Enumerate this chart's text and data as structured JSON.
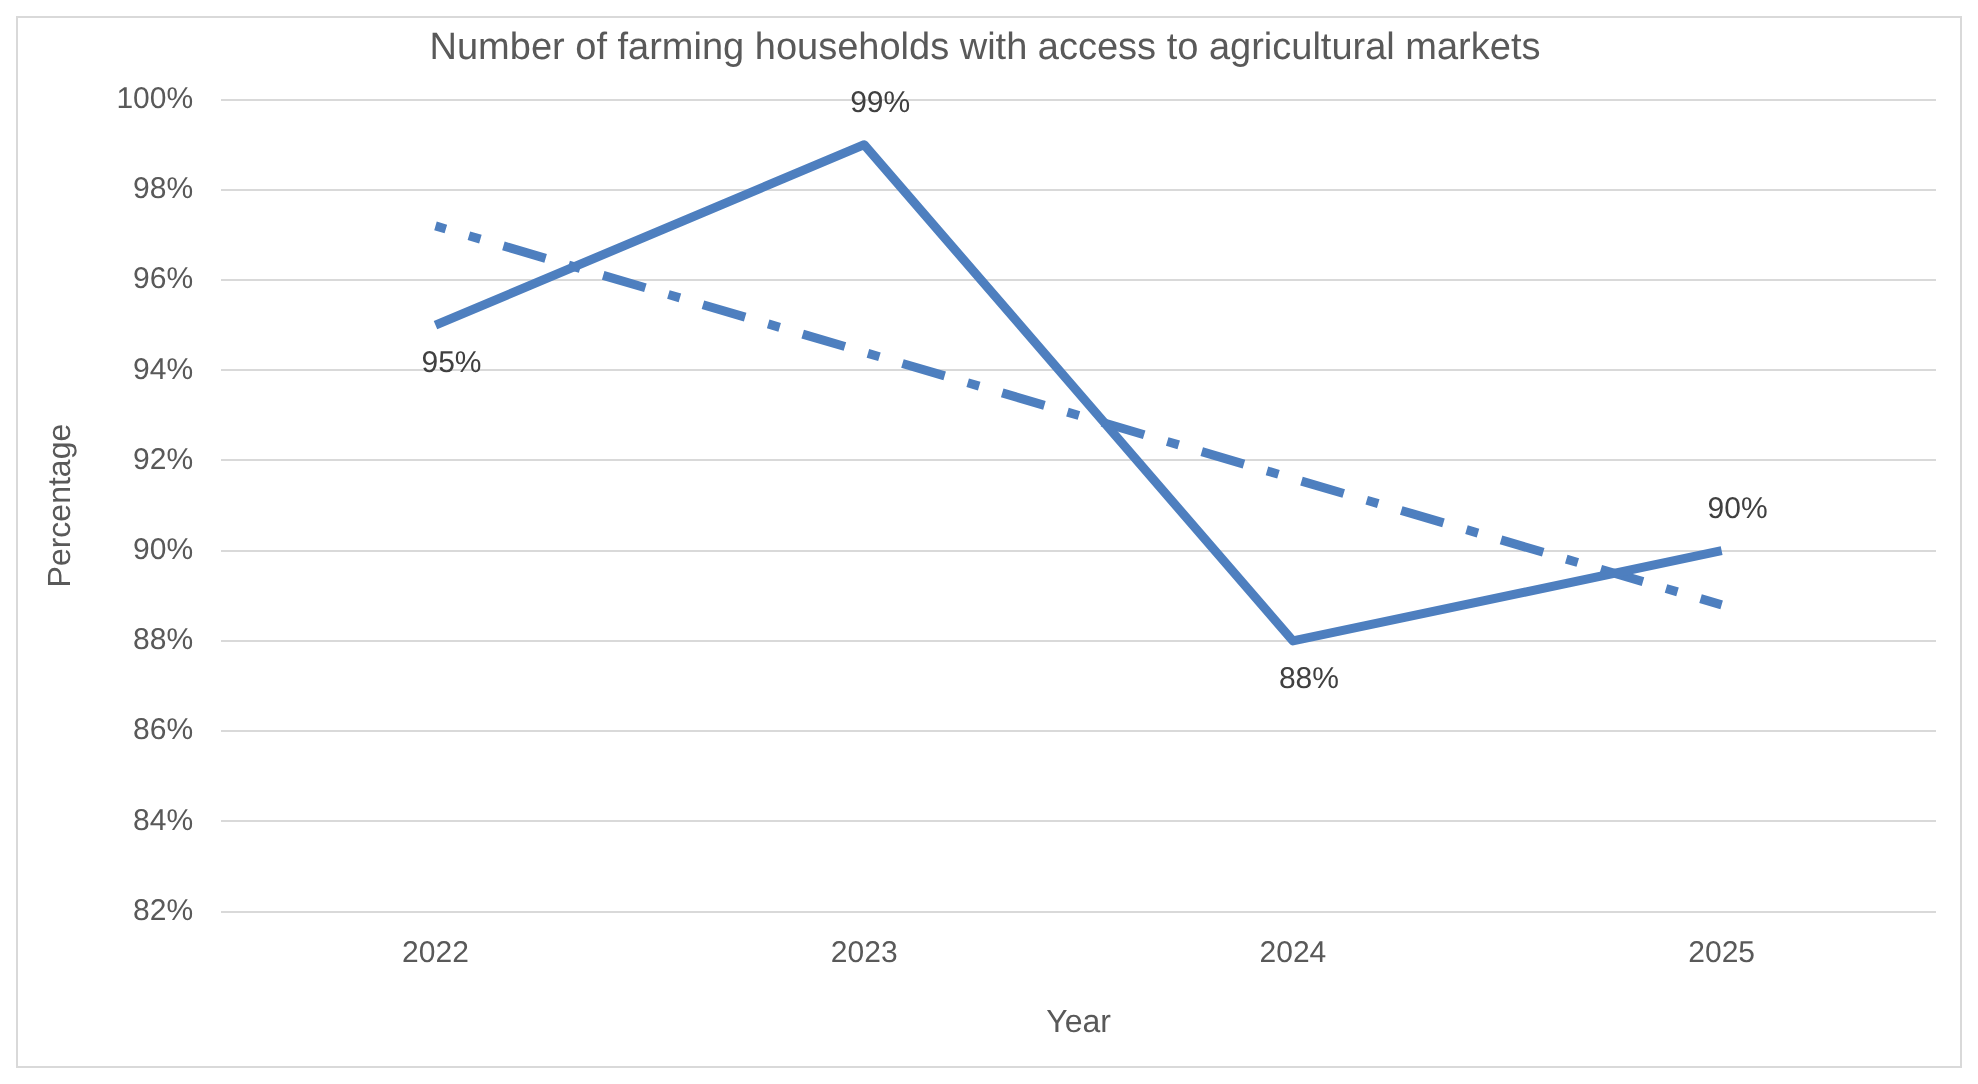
{
  "chart_data": {
    "type": "line",
    "title": "Number of farming households with access to agricultural markets",
    "xlabel": "Year",
    "ylabel": "Percentage",
    "categories": [
      "2022",
      "2023",
      "2024",
      "2025"
    ],
    "series": [
      {
        "color": "#4e7fbf",
        "values": [
          95,
          99,
          88,
          90
        ],
        "value_labels": [
          "95%",
          "99%",
          "88%",
          "90%"
        ],
        "line_style": "solid"
      },
      {
        "type": "line",
        "color": "#4e7fbf",
        "values": [
          97.2,
          94.4,
          91.6,
          88.8
        ],
        "line_style": "dashed"
      }
    ],
    "ylim": [
      82,
      100
    ],
    "yticks": [
      {
        "value": 82,
        "label": "82%"
      },
      {
        "value": 84,
        "label": "84%"
      },
      {
        "value": 86,
        "label": "86%"
      },
      {
        "value": 88,
        "label": "88%"
      },
      {
        "value": 90,
        "label": "90%"
      },
      {
        "value": 92,
        "label": "92%"
      },
      {
        "value": 94,
        "label": "94%"
      },
      {
        "value": 96,
        "label": "96%"
      },
      {
        "value": 98,
        "label": "98%"
      },
      {
        "value": 100,
        "label": "100%"
      }
    ],
    "grid": "y",
    "legend": false,
    "marker": "none"
  }
}
